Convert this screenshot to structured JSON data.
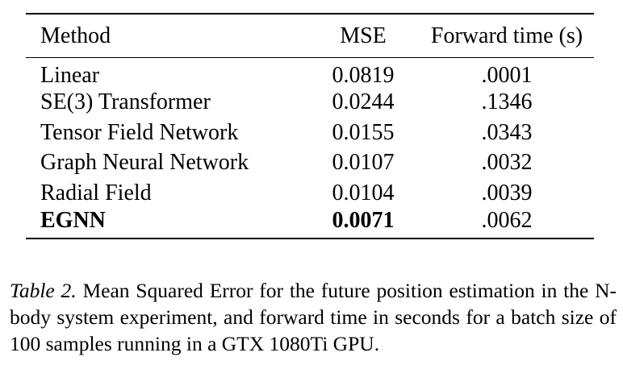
{
  "table": {
    "headers": {
      "method": "Method",
      "mse": "MSE",
      "time": "Forward time (s)"
    },
    "rows": [
      {
        "method": "Linear",
        "mse": "0.0819",
        "time": ".0001"
      },
      {
        "method": "SE(3) Transformer",
        "mse": "0.0244",
        "time": ".1346"
      },
      {
        "method": "Tensor Field Network",
        "mse": "0.0155",
        "time": ".0343"
      },
      {
        "method": "Graph Neural Network",
        "mse": "0.0107",
        "time": ".0032"
      },
      {
        "method": "Radial Field",
        "mse": "0.0104",
        "time": ".0039"
      },
      {
        "method": "EGNN",
        "mse": "0.0071",
        "time": ".0062"
      }
    ]
  },
  "caption": {
    "label": "Table 2.",
    "text": "Mean Squared Error for the future position estimation in the N-body system experiment, and forward time in seconds for a batch size of 100 samples running in a GTX 1080Ti GPU."
  }
}
